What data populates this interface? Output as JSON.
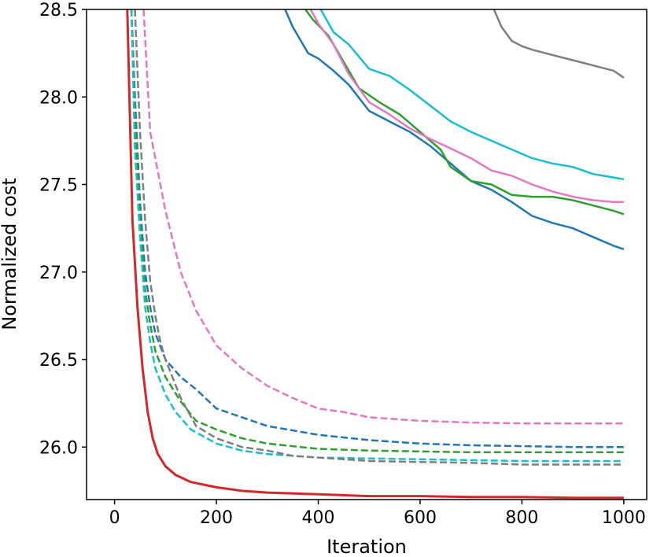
{
  "chart_data": {
    "type": "line",
    "title": "",
    "xlabel": "Iteration",
    "ylabel": "Normalized cost",
    "xlim": [
      -55,
      1045
    ],
    "ylim": [
      25.7,
      28.5
    ],
    "xticks": [
      0,
      200,
      400,
      600,
      800,
      1000
    ],
    "yticks": [
      26.0,
      26.5,
      27.0,
      27.5,
      28.0,
      28.5
    ],
    "xtick_labels": [
      "0",
      "200",
      "400",
      "600",
      "800",
      "1000"
    ],
    "ytick_labels": [
      "26.0",
      "26.5",
      "27.0",
      "27.5",
      "28.0",
      "28.5"
    ],
    "grid": false,
    "legend": "none",
    "series": [
      {
        "color": "#d62728",
        "style": "solid",
        "x": [
          25,
          35,
          45,
          55,
          65,
          75,
          85,
          100,
          120,
          150,
          200,
          250,
          300,
          400,
          500,
          600,
          700,
          800,
          900,
          1000
        ],
        "y": [
          28.5,
          27.3,
          26.8,
          26.45,
          26.2,
          26.05,
          25.96,
          25.89,
          25.84,
          25.8,
          25.77,
          25.75,
          25.74,
          25.73,
          25.72,
          25.72,
          25.715,
          25.715,
          25.71,
          25.71
        ]
      },
      {
        "color": "#1f77b4",
        "style": "dashed",
        "x": [
          33,
          40,
          50,
          60,
          70,
          80,
          100,
          130,
          160,
          200,
          250,
          300,
          400,
          500,
          600,
          700,
          800,
          900,
          1000
        ],
        "y": [
          28.5,
          28.0,
          27.4,
          27.0,
          26.8,
          26.65,
          26.5,
          26.4,
          26.33,
          26.22,
          26.17,
          26.12,
          26.07,
          26.04,
          26.02,
          26.01,
          26.005,
          26.0,
          26.0
        ]
      },
      {
        "color": "#2ca02c",
        "style": "dashed",
        "x": [
          33,
          40,
          50,
          60,
          70,
          80,
          100,
          130,
          160,
          200,
          250,
          300,
          400,
          500,
          600,
          700,
          800,
          900,
          1000
        ],
        "y": [
          28.5,
          27.9,
          27.3,
          26.9,
          26.7,
          26.55,
          26.4,
          26.26,
          26.15,
          26.1,
          26.05,
          26.02,
          25.99,
          25.98,
          25.975,
          25.97,
          25.97,
          25.97,
          25.97
        ]
      },
      {
        "color": "#17becf",
        "style": "dashed",
        "x": [
          33,
          40,
          50,
          60,
          70,
          80,
          100,
          120,
          150,
          200,
          250,
          300,
          350,
          400,
          500,
          600,
          700,
          800,
          900,
          1000
        ],
        "y": [
          28.5,
          27.7,
          27.2,
          26.8,
          26.6,
          26.45,
          26.3,
          26.2,
          26.1,
          26.02,
          25.98,
          25.96,
          25.95,
          25.94,
          25.935,
          25.93,
          25.925,
          25.92,
          25.92,
          25.92
        ]
      },
      {
        "color": "#7f7f7f",
        "style": "dashed",
        "x": [
          40,
          50,
          60,
          70,
          80,
          90,
          100,
          130,
          160,
          200,
          250,
          300,
          350,
          400,
          450,
          500,
          600,
          700,
          800,
          900,
          1000
        ],
        "y": [
          28.5,
          27.8,
          27.3,
          26.95,
          26.75,
          26.6,
          26.5,
          26.28,
          26.12,
          26.05,
          26.0,
          25.98,
          25.95,
          25.94,
          25.93,
          25.92,
          25.915,
          25.91,
          25.9,
          25.9,
          25.9
        ]
      },
      {
        "color": "#e377c2",
        "style": "dashed",
        "x": [
          57,
          70,
          100,
          130,
          160,
          200,
          250,
          300,
          350,
          400,
          450,
          500,
          600,
          700,
          800,
          900,
          1000
        ],
        "y": [
          28.5,
          27.8,
          27.35,
          27.0,
          26.78,
          26.58,
          26.45,
          26.35,
          26.28,
          26.22,
          26.2,
          26.17,
          26.15,
          26.14,
          26.135,
          26.135,
          26.135
        ]
      },
      {
        "color": "#1f77b4",
        "style": "solid",
        "x": [
          335,
          350,
          380,
          400,
          430,
          460,
          500,
          540,
          580,
          620,
          660,
          700,
          740,
          780,
          820,
          860,
          900,
          940,
          980,
          1000
        ],
        "y": [
          28.5,
          28.4,
          28.25,
          28.22,
          28.15,
          28.07,
          27.92,
          27.86,
          27.8,
          27.72,
          27.62,
          27.52,
          27.47,
          27.4,
          27.32,
          27.28,
          27.25,
          27.2,
          27.15,
          27.13
        ]
      },
      {
        "color": "#2ca02c",
        "style": "solid",
        "x": [
          375,
          390,
          420,
          450,
          480,
          520,
          560,
          600,
          640,
          660,
          700,
          740,
          780,
          820,
          860,
          900,
          940,
          980,
          1000
        ],
        "y": [
          28.5,
          28.44,
          28.35,
          28.2,
          28.05,
          27.97,
          27.9,
          27.8,
          27.7,
          27.6,
          27.52,
          27.5,
          27.44,
          27.43,
          27.43,
          27.41,
          27.38,
          27.35,
          27.33
        ]
      },
      {
        "color": "#e377c2",
        "style": "solid",
        "x": [
          385,
          400,
          430,
          460,
          500,
          540,
          580,
          620,
          650,
          700,
          740,
          780,
          820,
          860,
          900,
          940,
          980,
          1000
        ],
        "y": [
          28.5,
          28.42,
          28.3,
          28.13,
          27.97,
          27.9,
          27.82,
          27.76,
          27.72,
          27.65,
          27.58,
          27.55,
          27.5,
          27.46,
          27.43,
          27.41,
          27.4,
          27.4
        ]
      },
      {
        "color": "#17becf",
        "style": "solid",
        "x": [
          405,
          430,
          460,
          500,
          540,
          580,
          620,
          660,
          700,
          740,
          780,
          820,
          860,
          900,
          940,
          980,
          1000
        ],
        "y": [
          28.5,
          28.37,
          28.3,
          28.16,
          28.12,
          28.04,
          27.95,
          27.86,
          27.8,
          27.75,
          27.7,
          27.65,
          27.62,
          27.6,
          27.56,
          27.54,
          27.53
        ]
      },
      {
        "color": "#7f7f7f",
        "style": "solid",
        "x": [
          745,
          760,
          780,
          800,
          820,
          860,
          900,
          940,
          980,
          1000
        ],
        "y": [
          28.5,
          28.4,
          28.32,
          28.29,
          28.27,
          28.24,
          28.21,
          28.18,
          28.15,
          28.11
        ]
      }
    ]
  }
}
